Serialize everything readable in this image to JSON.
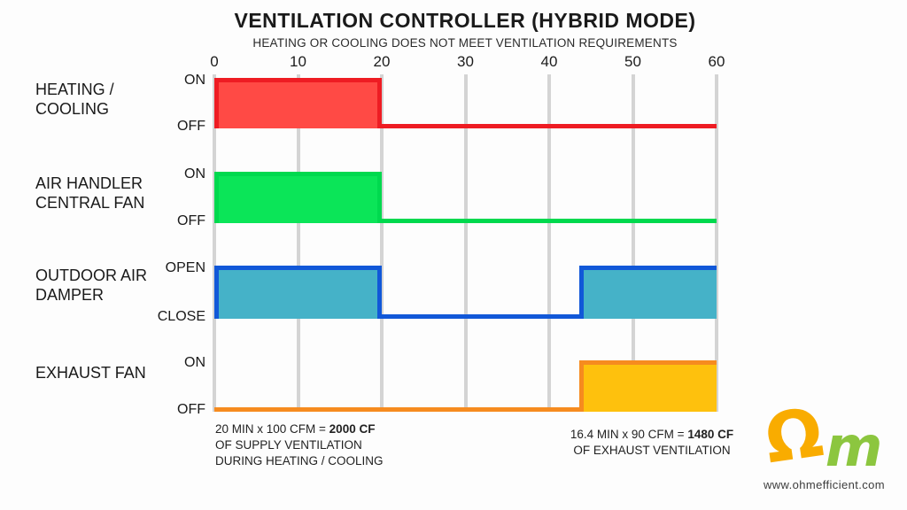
{
  "header": {
    "title": "VENTILATION CONTROLLER (HYBRID MODE)",
    "subtitle": "HEATING OR COOLING DOES NOT MEET VENTILATION REQUIREMENTS"
  },
  "chart_data": {
    "type": "step-timing",
    "title": "VENTILATION CONTROLLER (HYBRID MODE)",
    "subtitle": "HEATING OR COOLING DOES NOT MEET VENTILATION REQUIREMENTS",
    "xlim": [
      0,
      60
    ],
    "x_ticks": [
      0,
      10,
      20,
      30,
      40,
      50,
      60
    ],
    "grid": true,
    "x_unit": "MIN",
    "rows": [
      {
        "label": "HEATING / COOLING",
        "label_lines": "HEATING /\nCOOLING",
        "high_label": "ON",
        "low_label": "OFF",
        "fill": "#ff4a45",
        "stroke": "#ee1c23",
        "segments": [
          {
            "from": 0,
            "to": 20,
            "state": "high"
          },
          {
            "from": 20,
            "to": 60,
            "state": "low"
          }
        ]
      },
      {
        "label": "AIR HANDLER CENTRAL FAN",
        "label_lines": "AIR HANDLER\nCENTRAL FAN",
        "high_label": "ON",
        "low_label": "OFF",
        "fill": "#0be558",
        "stroke": "#00d94e",
        "segments": [
          {
            "from": 0,
            "to": 20,
            "state": "high"
          },
          {
            "from": 20,
            "to": 60,
            "state": "low"
          }
        ]
      },
      {
        "label": "OUTDOOR AIR DAMPER",
        "label_lines": "OUTDOOR AIR\nDAMPER",
        "high_label": "OPEN",
        "low_label": "CLOSE",
        "fill": "#45b2c8",
        "stroke": "#1158d8",
        "segments": [
          {
            "from": 0,
            "to": 20,
            "state": "high"
          },
          {
            "from": 20,
            "to": 43.6,
            "state": "low"
          },
          {
            "from": 43.6,
            "to": 60,
            "state": "high"
          }
        ]
      },
      {
        "label": "EXHAUST FAN",
        "label_lines": "EXHAUST FAN",
        "high_label": "ON",
        "low_label": "OFF",
        "fill": "#fec10d",
        "stroke": "#f68b1f",
        "segments": [
          {
            "from": 0,
            "to": 43.6,
            "state": "low"
          },
          {
            "from": 43.6,
            "to": 60,
            "state": "high"
          }
        ]
      }
    ]
  },
  "annotations": {
    "supply": {
      "l1p": "20 MIN x 100 CFM = ",
      "l1b": "2000 CF",
      "l2": "OF SUPPLY VENTILATION",
      "l3": "DURING HEATING / COOLING"
    },
    "exhaust": {
      "l1p": "16.4 MIN x 90 CFM = ",
      "l1b": "1480 CF",
      "l2": "OF EXHAUST VENTILATION"
    }
  },
  "logo": {
    "website": "www.ohmefficient.com",
    "omega_color": "#f9ac00",
    "m_color": "#8cc63f"
  }
}
